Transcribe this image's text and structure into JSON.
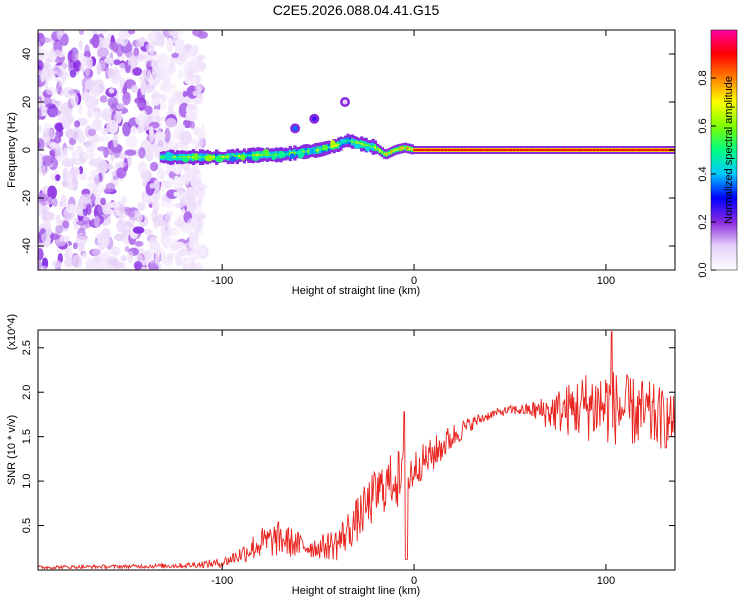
{
  "title": "C2E5.2026.088.04.41.G15",
  "chart_data": [
    {
      "type": "heatmap",
      "title": "C2E5.2026.088.04.41.G15",
      "xlabel": "Height of straight line (km)",
      "ylabel": "Frequency (Hz)",
      "xlim": [
        -196,
        136
      ],
      "ylim": [
        -50,
        50
      ],
      "x_ticks": [
        -100,
        0,
        100
      ],
      "x_tick_labels": [
        "-100",
        "0",
        "100"
      ],
      "y_ticks": [
        -40,
        -20,
        0,
        20,
        40
      ],
      "y_tick_labels": [
        "-40",
        "-20",
        "0",
        "20",
        "40"
      ],
      "colorbar": {
        "label": "Normalized spectral amplitude",
        "range": [
          0,
          1
        ],
        "ticks": [
          0.0,
          0.2,
          0.4,
          0.6,
          0.8
        ],
        "tick_labels": [
          "0.0",
          "0.2",
          "0.4",
          "0.6",
          "0.8"
        ],
        "stops": [
          "#ffffff",
          "#e6d0f8",
          "#8a2be2",
          "#0000ff",
          "#00c8ff",
          "#00ff80",
          "#80ff00",
          "#ffff00",
          "#ff8000",
          "#ff0000",
          "#ff00a0"
        ]
      },
      "ridge": {
        "description": "dominant frequency line vs height",
        "x": [
          -130,
          -120,
          -110,
          -100,
          -90,
          -80,
          -70,
          -60,
          -50,
          -45,
          -40,
          -35,
          -30,
          -25,
          -20,
          -15,
          -10,
          -5,
          0,
          10,
          20,
          40,
          60,
          80,
          100,
          120,
          136
        ],
        "y": [
          -3,
          -3,
          -3,
          -3,
          -2.5,
          -2,
          -2,
          -1,
          0,
          1,
          2,
          4,
          3,
          2,
          1,
          -2,
          0,
          1,
          0,
          0,
          0,
          0,
          0,
          0,
          0,
          0,
          0
        ]
      },
      "blobs": [
        {
          "x": -62,
          "y": 9,
          "v": 0.35
        },
        {
          "x": -52,
          "y": 13,
          "v": 0.25
        },
        {
          "x": -36,
          "y": 20,
          "v": 0.1
        }
      ]
    },
    {
      "type": "line",
      "xlabel": "Height of straight line (km)",
      "ylabel": "SNR (10 * v/v)",
      "y_multiplier": "(x10^4)",
      "xlim": [
        -196,
        136
      ],
      "ylim": [
        0,
        2.7
      ],
      "x_ticks": [
        -100,
        0,
        100
      ],
      "x_tick_labels": [
        "-100",
        "0",
        "100"
      ],
      "y_ticks": [
        0.5,
        1.0,
        1.5,
        2.0,
        2.5
      ],
      "y_tick_labels": [
        "0.5",
        "1.0",
        "1.5",
        "2.0",
        "2.5"
      ],
      "line_color": "#e8241f",
      "envelope": {
        "x": [
          -196,
          -150,
          -120,
          -100,
          -90,
          -80,
          -70,
          -60,
          -50,
          -40,
          -30,
          -20,
          -10,
          -5,
          0,
          10,
          20,
          30,
          40,
          50,
          60,
          70,
          80,
          90,
          100,
          110,
          120,
          130,
          136
        ],
        "mean": [
          0.03,
          0.04,
          0.05,
          0.08,
          0.18,
          0.3,
          0.35,
          0.28,
          0.25,
          0.3,
          0.55,
          0.85,
          1.05,
          0.9,
          1.15,
          1.3,
          1.5,
          1.65,
          1.75,
          1.8,
          1.8,
          1.78,
          1.8,
          1.85,
          1.85,
          1.8,
          1.75,
          1.7,
          1.65
        ],
        "amp": [
          0.02,
          0.02,
          0.03,
          0.05,
          0.1,
          0.18,
          0.2,
          0.15,
          0.12,
          0.2,
          0.25,
          0.3,
          0.3,
          0.5,
          0.2,
          0.2,
          0.15,
          0.08,
          0.05,
          0.05,
          0.08,
          0.2,
          0.3,
          0.4,
          0.45,
          0.4,
          0.4,
          0.35,
          0.3
        ]
      }
    }
  ]
}
